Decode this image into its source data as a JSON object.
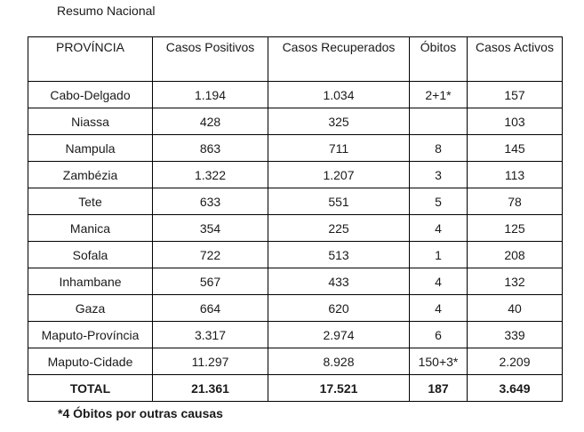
{
  "title": "Resumo Nacional",
  "table": {
    "headers": [
      "PROVÍNCIA",
      "Casos Positivos",
      "Casos Recuperados",
      "Óbitos",
      "Casos Activos"
    ],
    "rows": [
      [
        "Cabo-Delgado",
        "1.194",
        "1.034",
        "2+1*",
        "157"
      ],
      [
        "Niassa",
        "428",
        "325",
        "",
        "103"
      ],
      [
        "Nampula",
        "863",
        "711",
        "8",
        "145"
      ],
      [
        "Zambézia",
        "1.322",
        "1.207",
        "3",
        "113"
      ],
      [
        "Tete",
        "633",
        "551",
        "5",
        "78"
      ],
      [
        "Manica",
        "354",
        "225",
        "4",
        "125"
      ],
      [
        "Sofala",
        "722",
        "513",
        "1",
        "208"
      ],
      [
        "Inhambane",
        "567",
        "433",
        "4",
        "132"
      ],
      [
        "Gaza",
        "664",
        "620",
        "4",
        "40"
      ],
      [
        "Maputo-Província",
        "3.317",
        "2.974",
        "6",
        "339"
      ],
      [
        "Maputo-Cidade",
        "11.297",
        "8.928",
        "150+3*",
        "2.209"
      ]
    ],
    "total": [
      "TOTAL",
      "21.361",
      "17.521",
      "187",
      "3.649"
    ]
  },
  "footnote": "*4 Óbitos por outras causas"
}
